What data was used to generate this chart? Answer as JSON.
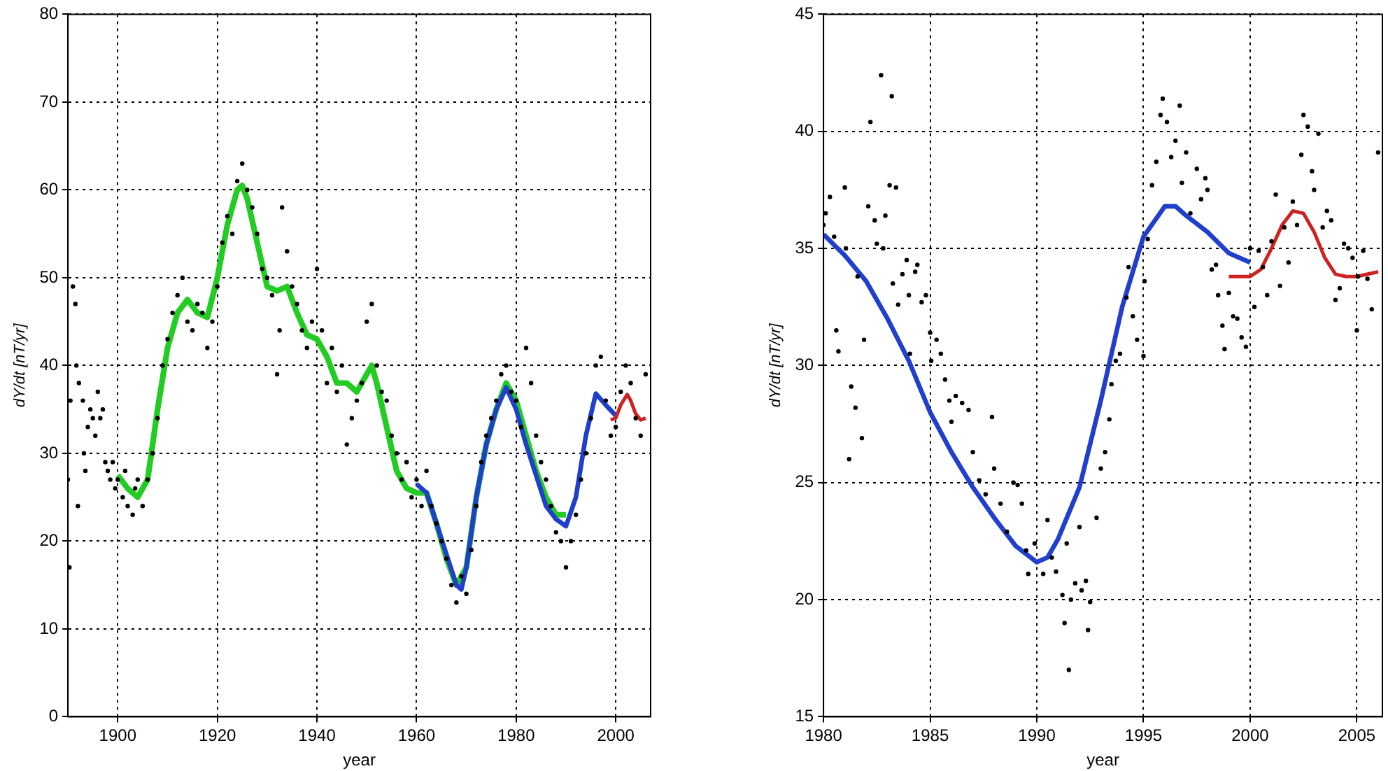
{
  "chart_data": [
    {
      "type": "scatter",
      "xlabel": "year",
      "ylabel": "dY/dt [nT/yr]",
      "xlim": [
        1890,
        2007
      ],
      "ylim": [
        0,
        80
      ],
      "xticks": [
        1900,
        1920,
        1940,
        1960,
        1980,
        2000
      ],
      "yticks": [
        0,
        10,
        20,
        30,
        40,
        50,
        60,
        70,
        80
      ],
      "grid": true,
      "legend": false,
      "series": [
        {
          "marker": "circle",
          "color": "#000000",
          "x": [
            1890,
            1890.3,
            1890.5,
            1891,
            1891.5,
            1891.7,
            1892,
            1892.2,
            1893,
            1893.2,
            1893.5,
            1894,
            1894.5,
            1895,
            1895.5,
            1896,
            1896.5,
            1897,
            1897.5,
            1898,
            1898.5,
            1899,
            1899.5,
            1900,
            1901,
            1901.5,
            1902,
            1903,
            1903.5,
            1904,
            1905,
            1906,
            1907,
            1908,
            1909,
            1910,
            1911,
            1912,
            1913,
            1914,
            1915,
            1916,
            1917,
            1918,
            1919,
            1920,
            1921,
            1922,
            1923,
            1924,
            1925,
            1926,
            1927,
            1928,
            1929,
            1930,
            1931,
            1932,
            1932.5,
            1933,
            1934,
            1935,
            1936,
            1937,
            1938,
            1939,
            1940,
            1941,
            1942,
            1943,
            1944,
            1945,
            1946,
            1947,
            1948,
            1949,
            1950,
            1951,
            1952,
            1953,
            1954,
            1955,
            1956,
            1957,
            1958,
            1959,
            1960,
            1961,
            1962,
            1963,
            1964,
            1965,
            1966,
            1967,
            1968,
            1969,
            1970,
            1971,
            1972,
            1973,
            1974,
            1975,
            1976,
            1977,
            1978,
            1979,
            1980,
            1981,
            1982,
            1983,
            1984,
            1985,
            1986,
            1987,
            1988,
            1989,
            1990,
            1991,
            1992,
            1993,
            1994,
            1995,
            1996,
            1997,
            1998,
            1999,
            2000,
            2001,
            2002,
            2003,
            2004,
            2005,
            2006
          ],
          "values": [
            27,
            17,
            36,
            49,
            47,
            40,
            24,
            38,
            36,
            30,
            28,
            33,
            35,
            34,
            32,
            37,
            34,
            35,
            29,
            28,
            27,
            29,
            26,
            27,
            25,
            28,
            24,
            23,
            26,
            27,
            24,
            27,
            30,
            34,
            40,
            43,
            46,
            48,
            50,
            45,
            44,
            47,
            46,
            42,
            45,
            49,
            54,
            57,
            55,
            61,
            63,
            60,
            58,
            55,
            51,
            50,
            48,
            39,
            44,
            58,
            53,
            49,
            47,
            44,
            42,
            45,
            51,
            44,
            38,
            42,
            37,
            40,
            31,
            34,
            36,
            38,
            45,
            47,
            40,
            37,
            36,
            32,
            30,
            27,
            29,
            25,
            27,
            24,
            28,
            24,
            22,
            20,
            18,
            15,
            13,
            16,
            14,
            19,
            24,
            29,
            32,
            34,
            36,
            39,
            40,
            37,
            36,
            33,
            42,
            38,
            32,
            29,
            27,
            24,
            21,
            20,
            17,
            20,
            23,
            27,
            30,
            34,
            40,
            41,
            36,
            32,
            33,
            37,
            40,
            38,
            34,
            32,
            39
          ]
        },
        {
          "type": "line",
          "marker": "none",
          "color": "#22cc22",
          "x": [
            1900,
            1902,
            1904,
            1906,
            1908,
            1910,
            1912,
            1914,
            1916,
            1918,
            1920,
            1922,
            1924,
            1925,
            1926,
            1928,
            1930,
            1932,
            1934,
            1936,
            1938,
            1940,
            1942,
            1944,
            1946,
            1948,
            1950,
            1951,
            1952,
            1954,
            1956,
            1958,
            1960,
            1962,
            1964,
            1966,
            1968,
            1970,
            1972,
            1974,
            1976,
            1978,
            1980,
            1982,
            1984,
            1986,
            1988,
            1990
          ],
          "values": [
            27.5,
            26,
            25,
            27,
            35,
            42,
            46,
            47.5,
            46,
            45.5,
            50,
            56,
            60,
            60.5,
            59,
            54,
            49,
            48.5,
            49,
            46,
            43.5,
            43,
            41,
            38,
            38,
            37,
            39,
            40,
            38,
            33,
            28,
            26,
            25.5,
            25.5,
            22,
            18,
            15,
            17,
            25,
            31,
            35,
            38,
            36,
            32,
            28,
            25,
            23,
            23
          ]
        },
        {
          "type": "line",
          "marker": "none",
          "color": "#1f3fcc",
          "x": [
            1960,
            1962,
            1964,
            1966,
            1968,
            1969,
            1970,
            1972,
            1974,
            1976,
            1978,
            1980,
            1982,
            1984,
            1986,
            1988,
            1990,
            1992,
            1994,
            1996,
            1998,
            2000
          ],
          "values": [
            26.5,
            25.5,
            22,
            18.5,
            15,
            14.5,
            17,
            25,
            31,
            35,
            37.5,
            35,
            31,
            27.5,
            24,
            22.5,
            21.7,
            25,
            32,
            36.8,
            35.5,
            34.3
          ]
        },
        {
          "type": "line",
          "marker": "none",
          "color": "#cc2222",
          "x": [
            1999,
            2000,
            2001,
            2002.3,
            2003,
            2004,
            2005,
            2006
          ],
          "values": [
            33.8,
            34,
            35.5,
            36.7,
            36,
            34.5,
            33.8,
            34
          ]
        }
      ]
    },
    {
      "type": "scatter",
      "xlabel": "year",
      "ylabel": "dY/dt [nT/yr]",
      "xlim": [
        1980,
        2006.2
      ],
      "ylim": [
        15,
        45
      ],
      "xticks": [
        1980,
        1985,
        1990,
        1995,
        2000,
        2005
      ],
      "yticks": [
        15,
        20,
        25,
        30,
        35,
        40,
        45
      ],
      "grid": true,
      "legend": false,
      "series": [
        {
          "marker": "circle",
          "color": "#000000",
          "x": [
            1980,
            1980.1,
            1980.3,
            1980.5,
            1980.6,
            1980.7,
            1981,
            1981.05,
            1981.2,
            1981.3,
            1981.5,
            1981.6,
            1981.8,
            1981.9,
            1982.1,
            1982.2,
            1982.4,
            1982.5,
            1982.7,
            1982.8,
            1982.9,
            1983.1,
            1983.2,
            1983.25,
            1983.4,
            1983.5,
            1983.7,
            1983.9,
            1984,
            1984.05,
            1984.3,
            1984.4,
            1984.6,
            1984.8,
            1985,
            1985.05,
            1985.3,
            1985.5,
            1985.7,
            1985.9,
            1986,
            1986.2,
            1986.5,
            1986.8,
            1987,
            1987.3,
            1987.6,
            1987.9,
            1988,
            1988.3,
            1988.6,
            1988.9,
            1989.1,
            1989.3,
            1989.5,
            1989.6,
            1989.9,
            1990.3,
            1990.5,
            1990.7,
            1990.9,
            1991.2,
            1991.3,
            1991.4,
            1991.5,
            1991.6,
            1991.8,
            1992,
            1992.1,
            1992.3,
            1992.4,
            1992.5,
            1992.8,
            1993,
            1993.2,
            1993.4,
            1993.5,
            1993.7,
            1993.9,
            1994.2,
            1994.3,
            1994.5,
            1994.7,
            1995,
            1995.05,
            1995.2,
            1995.4,
            1995.6,
            1995.8,
            1995.9,
            1996.1,
            1996.3,
            1996.5,
            1996.7,
            1996.8,
            1997,
            1997.2,
            1997.5,
            1997.7,
            1997.9,
            1998,
            1998.2,
            1998.4,
            1998.5,
            1998.7,
            1998.8,
            1999,
            1999.2,
            1999.4,
            1999.6,
            1999.8,
            2000,
            2000.2,
            2000.4,
            2000.6,
            2000.8,
            2001,
            2001.2,
            2001.4,
            2001.6,
            2001.8,
            2002,
            2002.2,
            2002.4,
            2002.5,
            2002.7,
            2002.9,
            2003,
            2003.2,
            2003.4,
            2003.6,
            2003.8,
            2004,
            2004.2,
            2004.4,
            2004.6,
            2004.8,
            2005,
            2005.05,
            2005.3,
            2005.5,
            2005.7,
            2006
          ],
          "values": [
            36,
            36.5,
            37.2,
            35.5,
            31.5,
            30.6,
            37.6,
            35,
            26,
            29.1,
            28.2,
            33.8,
            26.9,
            31.1,
            36.8,
            40.4,
            36.2,
            35.2,
            42.4,
            35,
            36.4,
            37.7,
            41.5,
            33.5,
            37.6,
            32.6,
            33.9,
            34.5,
            33,
            30.5,
            34,
            34.3,
            32.7,
            33,
            31.4,
            30.2,
            31.1,
            30.5,
            29.4,
            28.5,
            27.6,
            28.7,
            28.4,
            28.1,
            26.3,
            25.1,
            24.5,
            27.8,
            25.6,
            24.1,
            22.9,
            25,
            24.9,
            24.1,
            22.1,
            21.1,
            22.4,
            21.1,
            23.4,
            21.8,
            21.2,
            20.2,
            19,
            22.4,
            17,
            20,
            20.7,
            23.1,
            20.4,
            20.8,
            18.7,
            19.9,
            23.5,
            25.6,
            26.3,
            27.7,
            29.2,
            30.2,
            30.5,
            32.9,
            34.2,
            32.1,
            31.1,
            30.4,
            33.6,
            35.4,
            37.7,
            38.7,
            40.7,
            41.4,
            40.4,
            38.9,
            39.6,
            41.1,
            37.8,
            39.1,
            36.5,
            38.4,
            37.1,
            38,
            37.5,
            34.1,
            34.3,
            33,
            31.7,
            30.7,
            33.1,
            32.1,
            32,
            31.2,
            30.8,
            35,
            32.5,
            34.9,
            34.2,
            33,
            35.3,
            37.3,
            33.4,
            35.9,
            34.4,
            37,
            36,
            39,
            40.7,
            40.2,
            38.3,
            37.5,
            39.9,
            35.9,
            36.6,
            36.2,
            32.8,
            33.3,
            35.2,
            35,
            34.6,
            31.5,
            33.8,
            34.9,
            33.7,
            32.4,
            39.1
          ]
        },
        {
          "type": "line",
          "marker": "none",
          "color": "#1f3fcc",
          "x": [
            1980,
            1981,
            1982,
            1983,
            1984,
            1985,
            1986,
            1987,
            1988,
            1989,
            1990,
            1990.5,
            1991,
            1992,
            1993,
            1994,
            1995,
            1996,
            1996.5,
            1997,
            1998,
            1999,
            2000
          ],
          "values": [
            35.6,
            34.7,
            33.6,
            32,
            30.2,
            28,
            26.3,
            24.8,
            23.5,
            22.3,
            21.6,
            21.8,
            22.6,
            24.8,
            28.5,
            32.5,
            35.5,
            36.8,
            36.8,
            36.4,
            35.7,
            34.8,
            34.4
          ]
        },
        {
          "type": "line",
          "marker": "none",
          "color": "#cc2222",
          "x": [
            1999,
            2000,
            2000.5,
            2001,
            2001.5,
            2002,
            2002.5,
            2003,
            2003.5,
            2004,
            2004.5,
            2005,
            2006
          ],
          "values": [
            33.8,
            33.8,
            34.1,
            35,
            36,
            36.6,
            36.5,
            35.7,
            34.6,
            33.9,
            33.8,
            33.8,
            34
          ]
        }
      ]
    }
  ]
}
